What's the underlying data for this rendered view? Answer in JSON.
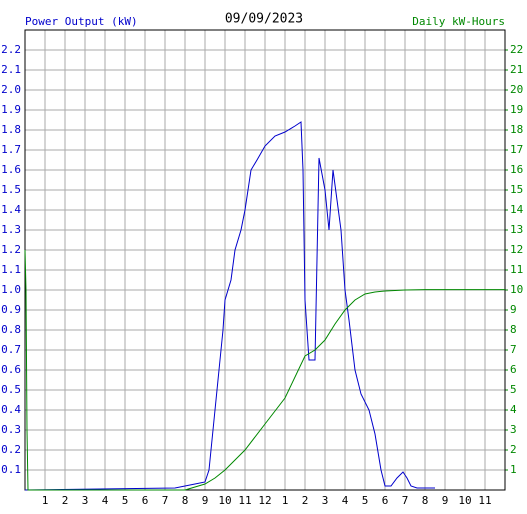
{
  "chart_data": {
    "type": "line",
    "title": "09/09/2023",
    "ylabel": "Power Output (kW)",
    "y2label": "Daily kW-Hours",
    "grid": true,
    "xlim": [
      0,
      24
    ],
    "xticks": [
      1,
      2,
      3,
      4,
      5,
      6,
      7,
      8,
      9,
      10,
      11,
      12,
      {
        "value": 13,
        "label": "1"
      },
      {
        "value": 14,
        "label": "2"
      },
      {
        "value": 15,
        "label": "3"
      },
      {
        "value": 16,
        "label": "4"
      },
      {
        "value": 17,
        "label": "5"
      },
      {
        "value": 18,
        "label": "6"
      },
      {
        "value": 19,
        "label": "7"
      },
      {
        "value": 20,
        "label": "8"
      },
      {
        "value": 21,
        "label": "9"
      },
      {
        "value": 22,
        "label": "10"
      },
      {
        "value": 23,
        "label": "11"
      }
    ],
    "ylim": [
      0,
      2.3
    ],
    "yticks": [
      0.1,
      0.2,
      0.3,
      0.4,
      0.5,
      0.6,
      0.7,
      0.8,
      0.9,
      {
        "value": 1,
        "label": "1.0"
      },
      1.1,
      1.2,
      1.3,
      1.4,
      1.5,
      1.6,
      1.7,
      1.8,
      1.9,
      {
        "value": 2,
        "label": "2.0"
      },
      2.1,
      2.2
    ],
    "y2lim": [
      0,
      23
    ],
    "y2ticks": [
      1,
      2,
      3,
      4,
      5,
      6,
      7,
      8,
      9,
      10,
      11,
      12,
      13,
      14,
      15,
      16,
      17,
      18,
      19,
      20,
      21,
      22
    ],
    "series": [
      {
        "color": "#0000cc",
        "x": [
          0,
          7.5,
          8,
          8.5,
          9,
          9.2,
          9.5,
          9.7,
          9.9,
          10,
          10.3,
          10.5,
          10.8,
          11,
          11.3,
          11.6,
          12,
          12.5,
          13,
          13.5,
          13.8,
          13.9,
          14,
          14.2,
          14.5,
          14.7,
          15,
          15.2,
          15.4,
          15.6,
          15.8,
          16,
          16.2,
          16.5,
          16.8,
          17.2,
          17.5,
          17.8,
          18,
          18.3,
          18.6,
          18.9,
          19.1,
          19.3,
          19.6,
          20.5
        ],
        "values": [
          0,
          0.01,
          0.02,
          0.03,
          0.04,
          0.1,
          0.4,
          0.6,
          0.8,
          0.95,
          1.05,
          1.2,
          1.3,
          1.4,
          1.6,
          1.65,
          1.72,
          1.77,
          1.79,
          1.82,
          1.84,
          1.6,
          0.95,
          0.65,
          0.65,
          1.66,
          1.5,
          1.3,
          1.6,
          1.45,
          1.3,
          1.0,
          0.85,
          0.6,
          0.48,
          0.4,
          0.28,
          0.1,
          0.02,
          0.02,
          0.06,
          0.09,
          0.06,
          0.02,
          0.01,
          0.01
        ]
      },
      {
        "color": "#008800",
        "axis": "y2",
        "x": [
          0,
          0.05,
          0.1,
          0.15,
          8,
          9,
          9.5,
          10,
          11,
          12,
          13,
          14,
          14.5,
          15,
          15.5,
          16,
          16.5,
          17,
          17.5,
          18,
          19,
          20,
          24
        ],
        "values": [
          12,
          10,
          3,
          0,
          0,
          0.3,
          0.6,
          1.0,
          2.0,
          3.3,
          4.6,
          6.7,
          7.0,
          7.5,
          8.3,
          9.0,
          9.5,
          9.8,
          9.9,
          9.95,
          10.0,
          10.02,
          10.02
        ]
      }
    ]
  }
}
